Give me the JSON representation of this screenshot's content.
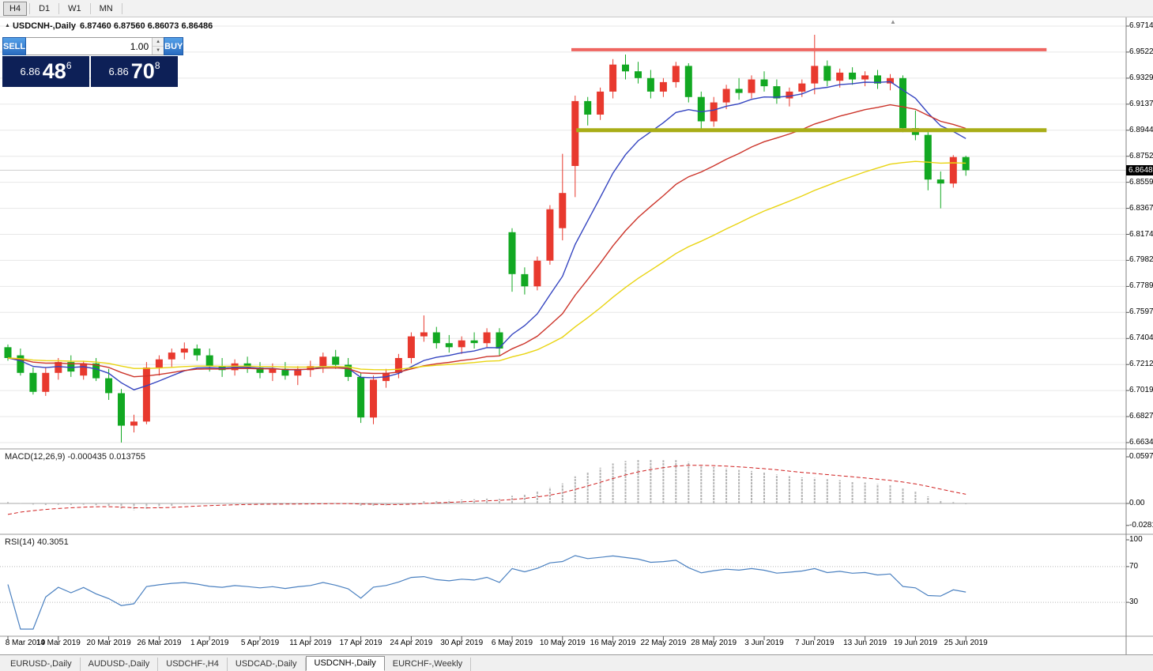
{
  "toolbar": {
    "timeframes": [
      {
        "label": "H4",
        "active": true
      },
      {
        "label": "D1",
        "active": false
      },
      {
        "label": "W1",
        "active": false
      },
      {
        "label": "MN",
        "active": false
      }
    ]
  },
  "icons": {
    "title_arrow": "▲",
    "pane_arrow": "▲",
    "spin_up": "▲",
    "spin_down": "▼"
  },
  "chart_header": {
    "symbol_period": "USDCNH-,Daily",
    "ohlc": "6.87460 6.87560 6.86073 6.86486"
  },
  "trade_panel": {
    "sell_label": "SELL",
    "buy_label": "BUY",
    "volume": "1.00",
    "sell_price": {
      "main": "6.86",
      "big": "48",
      "sup": "6"
    },
    "buy_price": {
      "main": "6.86",
      "big": "70",
      "sup": "8"
    }
  },
  "price_axis": {
    "labels": [
      "6.97145",
      "6.95220",
      "6.93295",
      "6.91370",
      "6.89445",
      "6.87520",
      "6.85595",
      "6.83670",
      "6.81745",
      "6.79820",
      "6.77895",
      "6.75970",
      "6.74045",
      "6.72120",
      "6.70195",
      "6.68270",
      "6.66345"
    ],
    "current": "6.86486"
  },
  "macd_panel": {
    "label": "MACD(12,26,9) -0.000435 0.013755",
    "axis_labels": [
      "0.059758",
      "0.00",
      "-0.02816"
    ]
  },
  "rsi_panel": {
    "label": "RSI(14) 40.3051",
    "axis_labels": [
      "100",
      "70",
      "30"
    ]
  },
  "tabs": [
    {
      "label": "EURUSD-,Daily",
      "active": false
    },
    {
      "label": "AUDUSD-,Daily",
      "active": false
    },
    {
      "label": "USDCHF-,H4",
      "active": false
    },
    {
      "label": "USDCAD-,Daily",
      "active": false
    },
    {
      "label": "USDCNH-,Daily",
      "active": true
    },
    {
      "label": "EURCHF-,Weekly",
      "active": false
    }
  ],
  "colors": {
    "bull_candle": "#e8392e",
    "bear_candle": "#12a822",
    "ma_fast": "#3444c0",
    "ma_mid": "#cc342a",
    "ma_slow": "#e9d411",
    "resistance_line": "#ef6560",
    "support_line": "#a8ad17",
    "macd_histogram": "#b6b6b6",
    "macd_signal": "#d02020",
    "rsi_line": "#4a80c0",
    "grid": "#e7e7e7",
    "badge_bg": "#000000",
    "buy_sell_button": "#2e7ed6",
    "price_display_bg": "#0d2057"
  },
  "chart_data": {
    "type": "candlestick",
    "symbol": "USDCNH-",
    "timeframe": "Daily",
    "current_bar": {
      "open": 6.8746,
      "high": 6.8756,
      "low": 6.86073,
      "close": 6.86486
    },
    "price_min_gridline": 6.66345,
    "price_max_gridline": 6.97145,
    "gridline_step": 0.01925,
    "x_labels": [
      {
        "i": 0,
        "label": "8 Mar 2019"
      },
      {
        "i": 4,
        "label": "14 Mar 2019"
      },
      {
        "i": 8,
        "label": "20 Mar 2019"
      },
      {
        "i": 12,
        "label": "26 Mar 2019"
      },
      {
        "i": 16,
        "label": "1 Apr 2019"
      },
      {
        "i": 20,
        "label": "5 Apr 2019"
      },
      {
        "i": 24,
        "label": "11 Apr 2019"
      },
      {
        "i": 28,
        "label": "17 Apr 2019"
      },
      {
        "i": 32,
        "label": "24 Apr 2019"
      },
      {
        "i": 36,
        "label": "30 Apr 2019"
      },
      {
        "i": 40,
        "label": "6 May 2019"
      },
      {
        "i": 44,
        "label": "10 May 2019"
      },
      {
        "i": 48,
        "label": "16 May 2019"
      },
      {
        "i": 52,
        "label": "22 May 2019"
      },
      {
        "i": 56,
        "label": "28 May 2019"
      },
      {
        "i": 60,
        "label": "3 Jun 2019"
      },
      {
        "i": 64,
        "label": "7 Jun 2019"
      },
      {
        "i": 68,
        "label": "13 Jun 2019"
      },
      {
        "i": 72,
        "label": "19 Jun 2019"
      },
      {
        "i": 76,
        "label": "25 Jun 2019"
      }
    ],
    "candles": [
      [
        6.734,
        6.736,
        6.724,
        6.726
      ],
      [
        6.728,
        6.733,
        6.713,
        6.715
      ],
      [
        6.715,
        6.719,
        6.699,
        6.701
      ],
      [
        6.701,
        6.719,
        6.698,
        6.715
      ],
      [
        6.715,
        6.726,
        6.71,
        6.723
      ],
      [
        6.723,
        6.728,
        6.712,
        6.716
      ],
      [
        6.713,
        6.724,
        6.71,
        6.722
      ],
      [
        6.722,
        6.726,
        6.709,
        6.711
      ],
      [
        6.711,
        6.718,
        6.695,
        6.7
      ],
      [
        6.7,
        6.703,
        6.6635,
        6.676
      ],
      [
        6.676,
        6.684,
        6.671,
        6.679
      ],
      [
        6.679,
        6.723,
        6.677,
        6.719
      ],
      [
        6.719,
        6.728,
        6.713,
        6.725
      ],
      [
        6.725,
        6.733,
        6.719,
        6.73
      ],
      [
        6.73,
        6.7375,
        6.725,
        6.733
      ],
      [
        6.733,
        6.736,
        6.724,
        6.728
      ],
      [
        6.728,
        6.733,
        6.716,
        6.72
      ],
      [
        6.72,
        6.726,
        6.712,
        6.717
      ],
      [
        6.717,
        6.725,
        6.713,
        6.722
      ],
      [
        6.722,
        6.727,
        6.715,
        6.719
      ],
      [
        6.719,
        6.723,
        6.711,
        6.715
      ],
      [
        6.715,
        6.722,
        6.709,
        6.718
      ],
      [
        6.718,
        6.723,
        6.71,
        6.713
      ],
      [
        6.713,
        6.72,
        6.706,
        6.717
      ],
      [
        6.717,
        6.724,
        6.712,
        6.72
      ],
      [
        6.72,
        6.73,
        6.715,
        6.727
      ],
      [
        6.727,
        6.732,
        6.718,
        6.721
      ],
      [
        6.721,
        6.726,
        6.709,
        6.712
      ],
      [
        6.712,
        6.715,
        6.678,
        6.682
      ],
      [
        6.682,
        6.713,
        6.677,
        6.71
      ],
      [
        6.709,
        6.718,
        6.704,
        6.715
      ],
      [
        6.715,
        6.729,
        6.711,
        6.726
      ],
      [
        6.726,
        6.745,
        6.722,
        6.742
      ],
      [
        6.742,
        6.7575,
        6.738,
        6.745
      ],
      [
        6.745,
        6.749,
        6.733,
        6.737
      ],
      [
        6.737,
        6.743,
        6.73,
        6.734
      ],
      [
        6.734,
        6.742,
        6.729,
        6.739
      ],
      [
        6.739,
        6.745,
        6.733,
        6.737
      ],
      [
        6.737,
        6.748,
        6.734,
        6.745
      ],
      [
        6.745,
        6.748,
        6.728,
        6.733
      ],
      [
        6.819,
        6.822,
        6.775,
        6.788
      ],
      [
        6.788,
        6.793,
        6.773,
        6.779
      ],
      [
        6.779,
        6.801,
        6.776,
        6.798
      ],
      [
        6.798,
        6.839,
        6.795,
        6.836
      ],
      [
        6.822,
        6.877,
        6.813,
        6.848
      ],
      [
        6.868,
        6.92,
        6.845,
        6.916
      ],
      [
        6.916,
        6.919,
        6.898,
        6.906
      ],
      [
        6.906,
        6.926,
        6.902,
        6.923
      ],
      [
        6.923,
        6.947,
        6.918,
        6.943
      ],
      [
        6.943,
        6.9504,
        6.932,
        6.938
      ],
      [
        6.938,
        6.945,
        6.929,
        6.933
      ],
      [
        6.933,
        6.939,
        6.918,
        6.923
      ],
      [
        6.923,
        6.933,
        6.919,
        6.93
      ],
      [
        6.93,
        6.945,
        6.926,
        6.942
      ],
      [
        6.942,
        6.944,
        6.915,
        6.919
      ],
      [
        6.919,
        6.923,
        6.895,
        6.901
      ],
      [
        6.901,
        6.919,
        6.897,
        6.915
      ],
      [
        6.915,
        6.928,
        6.91,
        6.925
      ],
      [
        6.925,
        6.933,
        6.917,
        6.922
      ],
      [
        6.922,
        6.935,
        6.918,
        6.932
      ],
      [
        6.932,
        6.938,
        6.923,
        6.927
      ],
      [
        6.927,
        6.932,
        6.914,
        6.918
      ],
      [
        6.918,
        6.926,
        6.912,
        6.923
      ],
      [
        6.923,
        6.932,
        6.919,
        6.929
      ],
      [
        6.929,
        6.965,
        6.921,
        6.942
      ],
      [
        6.942,
        6.946,
        6.927,
        6.931
      ],
      [
        6.931,
        6.94,
        6.926,
        6.937
      ],
      [
        6.937,
        6.941,
        6.928,
        6.932
      ],
      [
        6.932,
        6.938,
        6.927,
        6.935
      ],
      [
        6.935,
        6.939,
        6.925,
        6.929
      ],
      [
        6.929,
        6.936,
        6.924,
        6.933
      ],
      [
        6.933,
        6.935,
        6.893,
        6.896
      ],
      [
        6.896,
        6.909,
        6.887,
        6.891
      ],
      [
        6.891,
        6.893,
        6.85,
        6.858
      ],
      [
        6.858,
        6.864,
        6.8367,
        6.855
      ],
      [
        6.855,
        6.876,
        6.852,
        6.8746
      ],
      [
        6.8746,
        6.8756,
        6.86073,
        6.86486
      ]
    ],
    "hlines": [
      {
        "name": "resistance",
        "price": 6.954,
        "from_bar": 44.7,
        "to_bar": 82.4,
        "width": 4,
        "color_key": "resistance_line"
      },
      {
        "name": "support",
        "price": 6.8945,
        "from_bar": 45.1,
        "to_bar": 82.4,
        "width": 5,
        "color_key": "support_line"
      }
    ],
    "moving_averages": [
      {
        "type": "ema",
        "period": 10,
        "color_key": "ma_fast"
      },
      {
        "type": "ema",
        "period": 22,
        "color_key": "ma_mid"
      },
      {
        "type": "ema",
        "period": 45,
        "color_key": "ma_slow"
      }
    ],
    "indicators": {
      "macd": {
        "fast": 12,
        "slow": 26,
        "signal": 9,
        "value_main": -0.000435,
        "value_signal": 0.013755,
        "axis_max": 0.059758,
        "axis_min": -0.02816
      },
      "rsi": {
        "period": 14,
        "value": 40.3051,
        "levels": [
          70,
          30
        ]
      }
    }
  }
}
